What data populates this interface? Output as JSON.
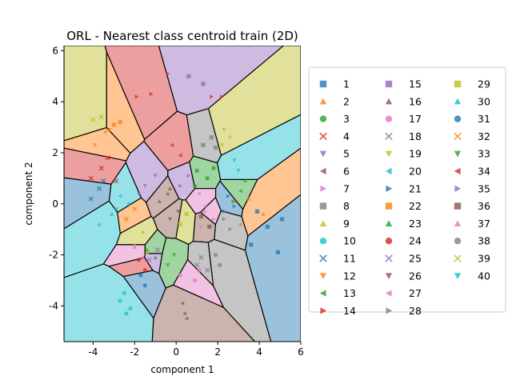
{
  "chart_data": {
    "type": "scatter",
    "title": "ORL - Nearest class centroid train (2D)",
    "xlabel": "component 1",
    "ylabel": "component 2",
    "xlim": [
      -5.4,
      6.0
    ],
    "ylim": [
      -5.4,
      6.2
    ],
    "xticks": [
      -4,
      -2,
      0,
      2,
      4,
      6
    ],
    "yticks": [
      -4,
      -2,
      0,
      2,
      4,
      6
    ],
    "grid": false,
    "legend_position": "right",
    "legend_columns": 3,
    "series": [
      {
        "name": "1",
        "color": "#1f77b4",
        "marker": "square",
        "centroid": [
          4.6,
          -1.3
        ],
        "points": [
          [
            5.1,
            -0.6
          ],
          [
            4.4,
            -0.9
          ],
          [
            3.6,
            -1.6
          ],
          [
            4.9,
            -1.9
          ],
          [
            3.9,
            -0.3
          ]
        ]
      },
      {
        "name": "2",
        "color": "#ff7f0e",
        "marker": "triangle",
        "centroid": [
          3.9,
          -0.2
        ],
        "points": [
          [
            3.5,
            0.2
          ],
          [
            4.2,
            -0.4
          ],
          [
            3.1,
            -0.8
          ],
          [
            2.8,
            0.1
          ]
        ]
      },
      {
        "name": "3",
        "color": "#2ca02c",
        "marker": "circle",
        "centroid": [
          1.2,
          1.1
        ],
        "points": [
          [
            1.0,
            1.3
          ],
          [
            1.5,
            1.0
          ],
          [
            0.9,
            0.7
          ],
          [
            1.8,
            1.4
          ]
        ]
      },
      {
        "name": "4",
        "color": "#d62728",
        "marker": "x",
        "centroid": [
          -3.8,
          1.3
        ],
        "points": [
          [
            -3.6,
            1.4
          ],
          [
            -4.1,
            1.0
          ],
          [
            -3.3,
            1.8
          ],
          [
            -2.9,
            0.9
          ]
        ]
      },
      {
        "name": "5",
        "color": "#9467bd",
        "marker": "tri-down",
        "centroid": [
          -1.2,
          0.9
        ],
        "points": [
          [
            -1.5,
            0.7
          ],
          [
            -1.0,
            1.1
          ],
          [
            -1.8,
            0.4
          ]
        ]
      },
      {
        "name": "6",
        "color": "#8c564b",
        "marker": "tri-left",
        "centroid": [
          0.4,
          -4.0
        ],
        "points": [
          [
            0.3,
            -3.9
          ],
          [
            0.4,
            -4.3
          ],
          [
            0.5,
            -4.5
          ]
        ]
      },
      {
        "name": "7",
        "color": "#e377c2",
        "marker": "tri-right",
        "centroid": [
          1.6,
          -0.4
        ],
        "points": [
          [
            1.4,
            -0.3
          ],
          [
            1.8,
            -0.6
          ],
          [
            1.2,
            -0.9
          ]
        ]
      },
      {
        "name": "8",
        "color": "#7f7f7f",
        "marker": "square",
        "centroid": [
          1.5,
          2.4
        ],
        "points": [
          [
            1.3,
            2.3
          ],
          [
            1.7,
            2.6
          ],
          [
            1.9,
            2.2
          ]
        ]
      },
      {
        "name": "9",
        "color": "#bcbd22",
        "marker": "triangle",
        "centroid": [
          -1.8,
          -1.3
        ],
        "points": [
          [
            -1.6,
            -1.1
          ],
          [
            -2.0,
            -1.6
          ],
          [
            -1.4,
            -1.9
          ]
        ]
      },
      {
        "name": "10",
        "color": "#17becf",
        "marker": "circle",
        "centroid": [
          -2.5,
          -3.8
        ],
        "points": [
          [
            -2.5,
            -3.5
          ],
          [
            -2.2,
            -4.1
          ],
          [
            -2.7,
            -3.8
          ],
          [
            -2.4,
            -4.3
          ]
        ]
      },
      {
        "name": "11",
        "color": "#1f77b4",
        "marker": "x",
        "centroid": [
          -3.9,
          0.4
        ],
        "points": [
          [
            -3.7,
            0.6
          ],
          [
            -4.1,
            0.2
          ],
          [
            -3.5,
            0.9
          ]
        ]
      },
      {
        "name": "12",
        "color": "#ff7f0e",
        "marker": "tri-down",
        "centroid": [
          -3.6,
          2.5
        ],
        "points": [
          [
            -3.4,
            2.8
          ],
          [
            -3.9,
            2.3
          ],
          [
            -3.2,
            2.9
          ]
        ]
      },
      {
        "name": "13",
        "color": "#2ca02c",
        "marker": "tri-left",
        "centroid": [
          2.9,
          0.4
        ],
        "points": [
          [
            3.1,
            0.5
          ],
          [
            2.7,
            0.1
          ],
          [
            3.3,
            0.9
          ]
        ]
      },
      {
        "name": "14",
        "color": "#d62728",
        "marker": "tri-right",
        "centroid": [
          -1.4,
          4.1
        ],
        "points": [
          [
            -1.9,
            4.2
          ],
          [
            -1.2,
            4.3
          ],
          [
            -0.4,
            5.1
          ],
          [
            1.7,
            4.2
          ],
          [
            2.2,
            4.2
          ]
        ]
      },
      {
        "name": "15",
        "color": "#9467bd",
        "marker": "square",
        "centroid": [
          0.9,
          4.9
        ],
        "points": [
          [
            0.6,
            5.0
          ],
          [
            1.3,
            4.7
          ]
        ]
      },
      {
        "name": "16",
        "color": "#8c564b",
        "marker": "triangle",
        "centroid": [
          -0.6,
          0.3
        ],
        "points": [
          [
            -0.4,
            0.4
          ],
          [
            -0.8,
            0.1
          ],
          [
            -0.3,
            0.6
          ]
        ]
      },
      {
        "name": "17",
        "color": "#e377c2",
        "marker": "circle",
        "centroid": [
          0.8,
          -2.9
        ],
        "points": [
          [
            0.2,
            -2.8
          ],
          [
            0.9,
            -3.0
          ],
          [
            1.1,
            -2.6
          ]
        ]
      },
      {
        "name": "18",
        "color": "#7f7f7f",
        "marker": "x",
        "centroid": [
          1.3,
          -2.3
        ],
        "points": [
          [
            1.2,
            -2.1
          ],
          [
            1.5,
            -2.6
          ],
          [
            1.0,
            -2.4
          ]
        ]
      },
      {
        "name": "19",
        "color": "#bcbd22",
        "marker": "tri-down",
        "centroid": [
          2.4,
          2.7
        ],
        "points": [
          [
            2.3,
            2.9
          ],
          [
            2.6,
            2.6
          ],
          [
            2.2,
            2.3
          ]
        ]
      },
      {
        "name": "20",
        "color": "#17becf",
        "marker": "tri-left",
        "centroid": [
          -2.5,
          0.2
        ],
        "points": [
          [
            -2.7,
            0.3
          ],
          [
            -2.3,
            0.0
          ],
          [
            -2.9,
            -0.2
          ]
        ]
      },
      {
        "name": "21",
        "color": "#1f77b4",
        "marker": "tri-right",
        "centroid": [
          2.6,
          0.1
        ],
        "points": [
          [
            2.5,
            0.3
          ],
          [
            2.8,
            -0.1
          ],
          [
            2.3,
            -0.3
          ]
        ]
      },
      {
        "name": "22",
        "color": "#ff7f0e",
        "marker": "square",
        "centroid": [
          -2.9,
          3.3
        ],
        "points": [
          [
            -3.0,
            3.1
          ],
          [
            -2.7,
            3.2
          ]
        ]
      },
      {
        "name": "23",
        "color": "#2ca02c",
        "marker": "triangle",
        "centroid": [
          -1.2,
          -1.9
        ],
        "points": [
          [
            -1.4,
            -1.8
          ],
          [
            -1.0,
            -2.1
          ]
        ]
      },
      {
        "name": "24",
        "color": "#d62728",
        "marker": "circle",
        "centroid": [
          -1.7,
          -2.4
        ],
        "points": [
          [
            -1.8,
            -2.2
          ],
          [
            -1.5,
            -2.6
          ]
        ]
      },
      {
        "name": "25",
        "color": "#9467bd",
        "marker": "x",
        "centroid": [
          -1.2,
          -2.0
        ],
        "points": [
          [
            -1.3,
            -2.2
          ],
          [
            -0.9,
            -1.8
          ]
        ]
      },
      {
        "name": "26",
        "color": "#8c564b",
        "marker": "tri-down",
        "centroid": [
          -0.1,
          -0.5
        ],
        "points": [
          [
            0.1,
            -0.3
          ],
          [
            -0.3,
            -0.6
          ]
        ]
      },
      {
        "name": "27",
        "color": "#e377c2",
        "marker": "tri-left",
        "centroid": [
          1.2,
          0.1
        ],
        "points": [
          [
            1.1,
            0.4
          ],
          [
            1.4,
            -0.1
          ]
        ]
      },
      {
        "name": "28",
        "color": "#7f7f7f",
        "marker": "tri-right",
        "centroid": [
          2.4,
          -0.8
        ],
        "points": [
          [
            2.3,
            -0.6
          ],
          [
            2.6,
            -1.0
          ]
        ]
      },
      {
        "name": "29",
        "color": "#bcbd22",
        "marker": "square",
        "centroid": [
          0.4,
          -0.6
        ],
        "points": [
          [
            0.5,
            -0.4
          ],
          [
            0.2,
            -0.8
          ]
        ]
      },
      {
        "name": "30",
        "color": "#17becf",
        "marker": "triangle",
        "centroid": [
          -3.4,
          -0.6
        ],
        "points": [
          [
            -3.1,
            -0.4
          ],
          [
            -3.7,
            -0.8
          ]
        ]
      },
      {
        "name": "31",
        "color": "#1f77b4",
        "marker": "circle",
        "centroid": [
          -1.6,
          -3.0
        ],
        "points": [
          [
            -1.5,
            -3.2
          ],
          [
            -1.7,
            -2.8
          ]
        ]
      },
      {
        "name": "32",
        "color": "#ff7f0e",
        "marker": "x",
        "centroid": [
          -2.2,
          -0.4
        ],
        "points": [
          [
            -2.4,
            -0.6
          ],
          [
            -2.0,
            -0.2
          ]
        ]
      },
      {
        "name": "33",
        "color": "#2ca02c",
        "marker": "tri-down",
        "centroid": [
          -0.2,
          -2.2
        ],
        "points": [
          [
            -0.1,
            -2.0
          ],
          [
            -0.4,
            -2.4
          ]
        ]
      },
      {
        "name": "34",
        "color": "#d62728",
        "marker": "tri-left",
        "centroid": [
          0.0,
          2.1
        ],
        "points": [
          [
            -0.2,
            2.3
          ],
          [
            0.2,
            1.9
          ]
        ]
      },
      {
        "name": "35",
        "color": "#9467bd",
        "marker": "tri-right",
        "centroid": [
          0.4,
          0.9
        ],
        "points": [
          [
            0.6,
            1.1
          ],
          [
            0.2,
            0.7
          ]
        ]
      },
      {
        "name": "36",
        "color": "#8c564b",
        "marker": "square",
        "centroid": [
          1.4,
          -0.7
        ],
        "points": [
          [
            1.6,
            -0.9
          ],
          [
            1.2,
            -0.5
          ]
        ]
      },
      {
        "name": "37",
        "color": "#e377c2",
        "marker": "triangle",
        "centroid": [
          -1.8,
          -1.9
        ],
        "points": [
          [
            -1.6,
            -2.1
          ],
          [
            -2.0,
            -1.7
          ]
        ]
      },
      {
        "name": "38",
        "color": "#7f7f7f",
        "marker": "circle",
        "centroid": [
          2.0,
          -2.2
        ],
        "points": [
          [
            2.1,
            -2.4
          ],
          [
            1.9,
            -2.0
          ]
        ]
      },
      {
        "name": "39",
        "color": "#bcbd22",
        "marker": "x",
        "centroid": [
          -3.8,
          3.3
        ],
        "points": [
          [
            -4.0,
            3.3
          ],
          [
            -3.6,
            3.4
          ]
        ]
      },
      {
        "name": "40",
        "color": "#17becf",
        "marker": "tri-down",
        "centroid": [
          2.9,
          1.5
        ],
        "points": [
          [
            2.8,
            1.7
          ],
          [
            3.0,
            1.3
          ]
        ]
      }
    ]
  }
}
